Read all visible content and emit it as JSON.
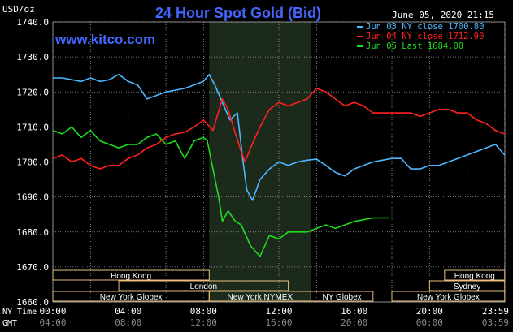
{
  "chart_data": {
    "type": "line",
    "title": "24 Hour Spot Gold (Bid)",
    "website": "www.kitco.com",
    "timestamp": "June 05, 2020 21:15",
    "y_unit": "USD/oz",
    "ylim": [
      1660,
      1740
    ],
    "y_ticks": [
      "1740.0",
      "1730.0",
      "1720.0",
      "1710.0",
      "1700.0",
      "1690.0",
      "1680.0",
      "1670.0",
      "1660.0"
    ],
    "x_ticks_ny": [
      "00:00",
      "04:00",
      "08:00",
      "12:00",
      "16:00",
      "20:00",
      "23:59"
    ],
    "x_ticks_gmt": [
      "04:00",
      "08:00",
      "12:00",
      "16:00",
      "20:00",
      "00:00",
      "03:59"
    ],
    "x_row_labels": {
      "ny": "NY Time",
      "gmt": "GMT"
    },
    "grid": true,
    "legend_position": "top-right",
    "highlight_band_hours": [
      8.3,
      13.7
    ],
    "series": [
      {
        "name": "Jun 03 NY close 1700.80",
        "color": "#4db8ff",
        "x": [
          0,
          0.5,
          1,
          1.5,
          2,
          2.5,
          3,
          3.5,
          4,
          4.5,
          5,
          5.5,
          6,
          6.5,
          7,
          7.5,
          8,
          8.3,
          8.6,
          9,
          9.4,
          9.8,
          10.1,
          10.3,
          10.6,
          11,
          11.5,
          12,
          12.5,
          13,
          13.5,
          14,
          14.5,
          15,
          15.5,
          16,
          16.5,
          17,
          17.5,
          18,
          18.5,
          19,
          19.5,
          20,
          20.5,
          21,
          21.5,
          22,
          22.5,
          23,
          23.5,
          23.99
        ],
        "values": [
          1724,
          1724,
          1723.5,
          1723,
          1724,
          1723,
          1723.5,
          1725,
          1723,
          1722,
          1718,
          1719,
          1720,
          1720.5,
          1721,
          1722,
          1723,
          1725,
          1722,
          1717,
          1712,
          1714,
          1700,
          1692,
          1689,
          1695,
          1698,
          1700,
          1699,
          1700,
          1700.5,
          1700.8,
          1699,
          1697,
          1696,
          1698,
          1699,
          1700,
          1700.5,
          1701,
          1701,
          1698,
          1698,
          1699,
          1699,
          1700,
          1701,
          1702,
          1703,
          1704,
          1705,
          1702
        ]
      },
      {
        "name": "Jun 04 NY close 1712.90",
        "color": "#ff2020",
        "x": [
          0,
          0.5,
          1,
          1.5,
          2,
          2.5,
          3,
          3.5,
          4,
          4.5,
          5,
          5.5,
          6,
          6.5,
          7,
          7.5,
          8,
          8.5,
          9,
          9.3,
          9.7,
          10,
          10.2,
          10.5,
          11,
          11.5,
          12,
          12.5,
          13,
          13.5,
          14,
          14.5,
          15,
          15.5,
          16,
          16.5,
          17,
          17.5,
          18,
          18.5,
          19,
          19.5,
          20,
          20.5,
          21,
          21.5,
          22,
          22.5,
          23,
          23.5,
          23.99
        ],
        "values": [
          1701,
          1702,
          1700,
          1701,
          1699,
          1698,
          1699,
          1699,
          1701,
          1702,
          1704,
          1705,
          1707,
          1708,
          1708.5,
          1710,
          1712,
          1709,
          1718,
          1715,
          1708,
          1703,
          1700,
          1704,
          1710,
          1715,
          1717,
          1716,
          1717,
          1718,
          1721,
          1720,
          1718,
          1716,
          1717,
          1716,
          1714,
          1714,
          1714,
          1714,
          1714,
          1713,
          1714,
          1715,
          1715,
          1714,
          1714,
          1712,
          1711,
          1709,
          1708
        ]
      },
      {
        "name": "Jun 05 Last 1684.00",
        "color": "#1edc1e",
        "x": [
          0,
          0.5,
          1,
          1.5,
          2,
          2.5,
          3,
          3.5,
          4,
          4.5,
          5,
          5.5,
          6,
          6.5,
          7,
          7.5,
          8,
          8.2,
          8.5,
          8.8,
          9,
          9.3,
          9.7,
          10,
          10.5,
          11,
          11.5,
          12,
          12.5,
          13,
          13.5,
          14,
          14.5,
          15,
          15.5,
          16,
          16.5,
          17,
          17.5,
          17.85
        ],
        "values": [
          1709,
          1708,
          1710,
          1707,
          1709,
          1706,
          1705,
          1704,
          1705,
          1705,
          1707,
          1708,
          1705,
          1706,
          1701,
          1706,
          1707,
          1706,
          1698,
          1690,
          1683,
          1686,
          1683,
          1682,
          1676,
          1673,
          1679,
          1678,
          1680,
          1680,
          1680,
          1681,
          1682,
          1681,
          1682,
          1683,
          1683.5,
          1684,
          1684,
          1684
        ]
      }
    ]
  },
  "market_sessions": [
    {
      "name": "Hong Kong",
      "start": 0,
      "end": 8.3,
      "row": 0
    },
    {
      "name": "London",
      "start": 3.5,
      "end": 12.5,
      "row": 1
    },
    {
      "name": "New York Globex",
      "start": 0,
      "end": 8.3,
      "row": 2
    },
    {
      "name": "New York NYMEX",
      "start": 8.3,
      "end": 13.7,
      "row": 2
    },
    {
      "name": "NY Globex",
      "start": 13.7,
      "end": 17,
      "row": 2
    },
    {
      "name": "Hong Kong",
      "start": 20.8,
      "end": 23.99,
      "row": 0
    },
    {
      "name": "Sydney",
      "start": 20,
      "end": 23.99,
      "row": 1
    },
    {
      "name": "New York Globex",
      "start": 18,
      "end": 23.99,
      "row": 2
    }
  ]
}
